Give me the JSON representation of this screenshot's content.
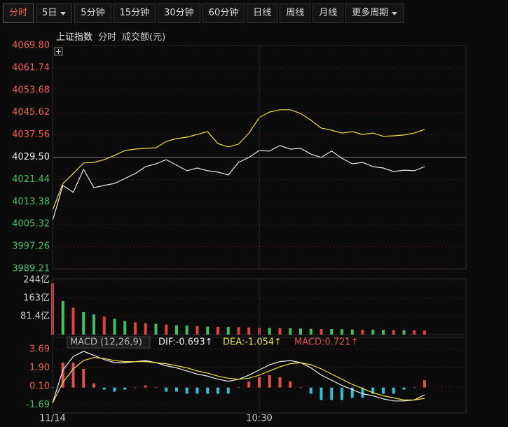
{
  "toolbar": {
    "tabs": [
      "分时",
      "5日",
      "5分钟",
      "15分钟",
      "30分钟",
      "60分钟",
      "日线",
      "周线",
      "月线",
      "更多周期"
    ],
    "active": 0
  },
  "header": {
    "mode": "分时",
    "volume_unit": "成交额(元)"
  },
  "chart_data": [
    {
      "type": "line",
      "xlim": [
        0,
        120
      ],
      "ylim": [
        3989.21,
        4069.8
      ],
      "yticks": [
        {
          "value": 4069.8,
          "label": "4069.80"
        },
        4061.74,
        4053.68,
        4045.62,
        4037.56,
        {
          "value": 4029.5,
          "label": "4029.50"
        },
        4021.44,
        4013.38,
        4005.32,
        3997.26,
        3989.21
      ],
      "x": [
        0,
        3,
        6,
        9,
        12,
        15,
        18,
        21,
        24,
        27,
        30,
        33,
        36,
        39,
        42,
        45,
        48,
        51,
        54,
        57,
        60,
        63,
        66,
        69,
        72,
        75,
        78,
        81,
        84,
        87,
        90,
        93,
        96,
        99,
        102,
        105,
        108
      ],
      "series": [
        {
          "name": "上证指数",
          "color": "#e8e8e8",
          "values": [
            4006.6,
            4019.3,
            4016.8,
            4025.1,
            4018.5,
            4019.3,
            4020.0,
            4021.8,
            4023.6,
            4026.1,
            4027.1,
            4028.6,
            4026.6,
            4024.6,
            4025.6,
            4024.6,
            4024.1,
            4023.1,
            4027.6,
            4029.4,
            4031.9,
            4031.7,
            4033.7,
            4032.4,
            4032.7,
            4030.6,
            4029.4,
            4031.7,
            4029.1,
            4027.1,
            4027.6,
            4026.1,
            4025.6,
            4024.3,
            4024.8,
            4024.6,
            4026.1
          ]
        },
        {
          "color": "#f0e040",
          "values": [
            4010.4,
            4020.0,
            4023.6,
            4027.4,
            4027.6,
            4028.6,
            4030.1,
            4031.9,
            4032.4,
            4032.7,
            4032.9,
            4035.2,
            4036.2,
            4036.7,
            4037.7,
            4038.7,
            4034.4,
            4033.2,
            4034.2,
            4038.2,
            4043.8,
            4045.8,
            4046.6,
            4046.6,
            4045.3,
            4042.8,
            4040.0,
            4039.2,
            4038.2,
            4038.7,
            4037.7,
            4038.2,
            4037.0,
            4037.2,
            4037.5,
            4038.2,
            4039.5
          ]
        }
      ]
    },
    {
      "type": "bar",
      "xlim": [
        0,
        120
      ],
      "ylim": [
        0,
        250
      ],
      "yticks": [
        {
          "value": 244,
          "label": "244亿"
        },
        {
          "value": 163,
          "label": "163亿"
        },
        {
          "value": 81.4,
          "label": "81.4亿"
        }
      ],
      "x": [
        0,
        3,
        6,
        9,
        12,
        15,
        18,
        21,
        24,
        27,
        30,
        33,
        36,
        39,
        42,
        45,
        48,
        51,
        54,
        57,
        60,
        63,
        66,
        69,
        72,
        75,
        78,
        81,
        84,
        87,
        90,
        93,
        96,
        99,
        102,
        105,
        108
      ],
      "values": [
        230,
        150,
        120,
        100,
        90,
        80,
        70,
        60,
        55,
        50,
        48,
        45,
        42,
        40,
        38,
        36,
        35,
        34,
        33,
        32,
        30,
        30,
        29,
        28,
        27,
        26,
        25,
        25,
        24,
        23,
        22,
        22,
        21,
        20,
        20,
        19,
        18
      ],
      "colors": [
        "#e04040",
        "#40c060",
        "#e04040",
        "#40c060",
        "#40c060",
        "#e04040",
        "#40c060",
        "#40c060",
        "#e04040",
        "#e04040",
        "#40c060",
        "#e04040",
        "#40c060",
        "#40c060",
        "#e04040",
        "#40c060",
        "#e04040",
        "#40c060",
        "#e04040",
        "#e04040",
        "#e04040",
        "#40c060",
        "#e04040",
        "#40c060",
        "#40c060",
        "#40c060",
        "#e04040",
        "#40c060",
        "#40c060",
        "#40c060",
        "#e04040",
        "#40c060",
        "#40c060",
        "#e04040",
        "#40c060",
        "#e04040",
        "#e04040"
      ]
    },
    {
      "type": "combo",
      "title": "MACD (12,26,9)",
      "xlim": [
        0,
        120
      ],
      "ylim": [
        -2.46,
        4.84
      ],
      "yticks": [
        3.69,
        {
          "value": 1.9,
          "label": "1.90"
        },
        {
          "value": 0.1,
          "label": "0.10"
        },
        -1.69
      ],
      "xticks": [
        {
          "value": 0,
          "label": "11/14"
        },
        {
          "value": 60,
          "label": "10:30"
        }
      ],
      "x": [
        0,
        3,
        6,
        9,
        12,
        15,
        18,
        21,
        24,
        27,
        30,
        33,
        36,
        39,
        42,
        45,
        48,
        51,
        54,
        57,
        60,
        63,
        66,
        69,
        72,
        75,
        78,
        81,
        84,
        87,
        90,
        93,
        96,
        99,
        102,
        105,
        108
      ],
      "series": [
        {
          "name": "DIF:-0.693↑",
          "kind": "line",
          "color": "#f0f0f0",
          "values": [
            -1.5,
            1.7,
            3.0,
            3.5,
            3.1,
            2.7,
            2.4,
            2.4,
            2.5,
            2.6,
            2.4,
            2.1,
            1.9,
            1.6,
            1.3,
            1.1,
            0.8,
            0.6,
            0.8,
            1.2,
            1.7,
            2.2,
            2.5,
            2.6,
            2.4,
            1.9,
            1.2,
            0.7,
            0.2,
            -0.2,
            -0.6,
            -0.8,
            -1.1,
            -1.3,
            -1.3,
            -1.2,
            -0.7
          ]
        },
        {
          "name": "DEA:-1.054↑",
          "kind": "line",
          "color": "#f0e040",
          "values": [
            -1.5,
            0.5,
            1.8,
            2.6,
            2.9,
            2.8,
            2.6,
            2.5,
            2.5,
            2.5,
            2.4,
            2.3,
            2.1,
            1.9,
            1.6,
            1.4,
            1.1,
            0.9,
            0.8,
            0.9,
            1.2,
            1.6,
            2.0,
            2.3,
            2.4,
            2.2,
            1.8,
            1.3,
            0.8,
            0.3,
            -0.1,
            -0.5,
            -0.8,
            -1.0,
            -1.2,
            -1.2,
            -1.05
          ]
        },
        {
          "name": "MACD:0.721↑",
          "kind": "bar",
          "color": "#e05050",
          "negative_color": "#30c0d0",
          "values": [
            0,
            2.4,
            2.4,
            1.8,
            0.4,
            -0.2,
            -0.4,
            -0.2,
            0,
            0.2,
            0,
            -0.4,
            -0.4,
            -0.6,
            -0.6,
            -0.6,
            -0.6,
            -0.6,
            0,
            0.6,
            1.0,
            1.2,
            1.0,
            0.6,
            0,
            -0.6,
            -1.2,
            -1.2,
            -1.2,
            -1.0,
            -1.0,
            -0.6,
            -0.6,
            -0.6,
            -0.2,
            0,
            0.7
          ]
        }
      ]
    }
  ]
}
